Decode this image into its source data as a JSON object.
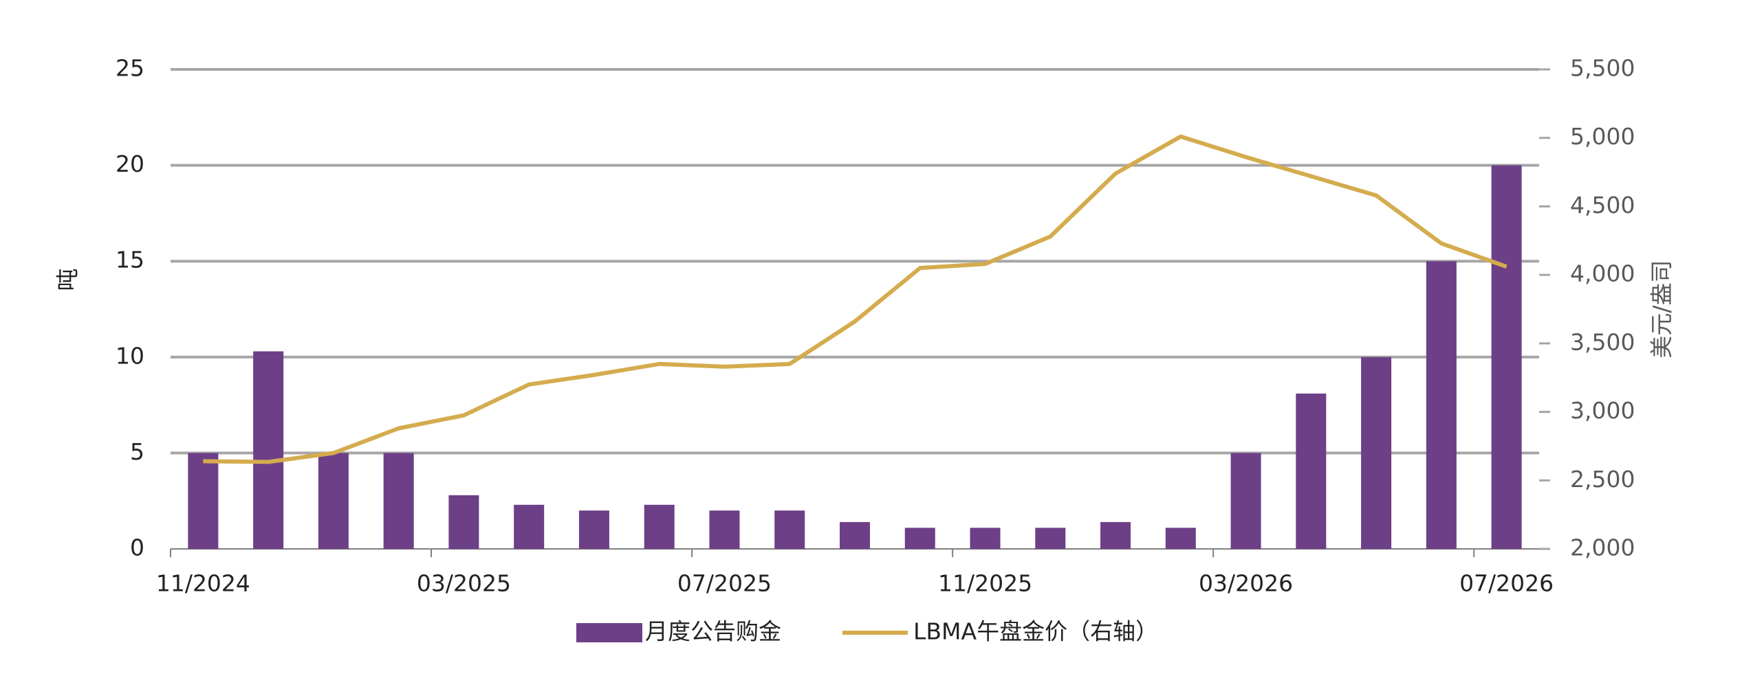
{
  "chart_data": {
    "type": "bar_line",
    "categories": [
      "11/2024",
      null,
      null,
      null,
      "03/2025",
      null,
      null,
      null,
      "07/2025",
      null,
      null,
      null,
      "11/2025",
      null,
      null,
      null,
      "03/2026",
      null,
      null,
      null,
      "07/2026"
    ],
    "series": [
      {
        "name": "月度公告购金",
        "color": "#6d3f87",
        "type": "bar",
        "values": [
          5,
          10.3,
          5,
          5,
          2.8,
          2.3,
          2,
          2.3,
          2,
          2,
          1.4,
          1.1,
          1.1,
          1.1,
          1.4,
          1.1,
          5,
          8.1,
          10,
          15,
          20
        ]
      },
      {
        "name": "LBMA午盘金价（右轴）",
        "color": "#d4ac4e",
        "type": "line",
        "axis": "y2",
        "values": [
          2640,
          2635,
          2700,
          2880,
          2975,
          3200,
          3270,
          3350,
          3330,
          3350,
          3660,
          4050,
          4080,
          4280,
          4740,
          5010,
          4860,
          4720,
          4580,
          4230,
          4060
        ]
      }
    ],
    "ylabel": "吨",
    "y2label": "美元/盎司",
    "ylim": [
      0,
      25
    ],
    "yticks": [
      0,
      5,
      10,
      15,
      20,
      25
    ],
    "y2lim": [
      2000,
      5500
    ],
    "y2ticks": [
      {
        "value": 2000,
        "label": "2,000"
      },
      {
        "value": 2500,
        "label": "2,500"
      },
      {
        "value": 3000,
        "label": "3,000"
      },
      {
        "value": 3500,
        "label": "3,500"
      },
      {
        "value": 4000,
        "label": "4,000"
      },
      {
        "value": 4500,
        "label": "4,500"
      },
      {
        "value": 5000,
        "label": "5,000"
      },
      {
        "value": 5500,
        "label": "5,500"
      }
    ],
    "grid": true,
    "legend": "bottom"
  }
}
